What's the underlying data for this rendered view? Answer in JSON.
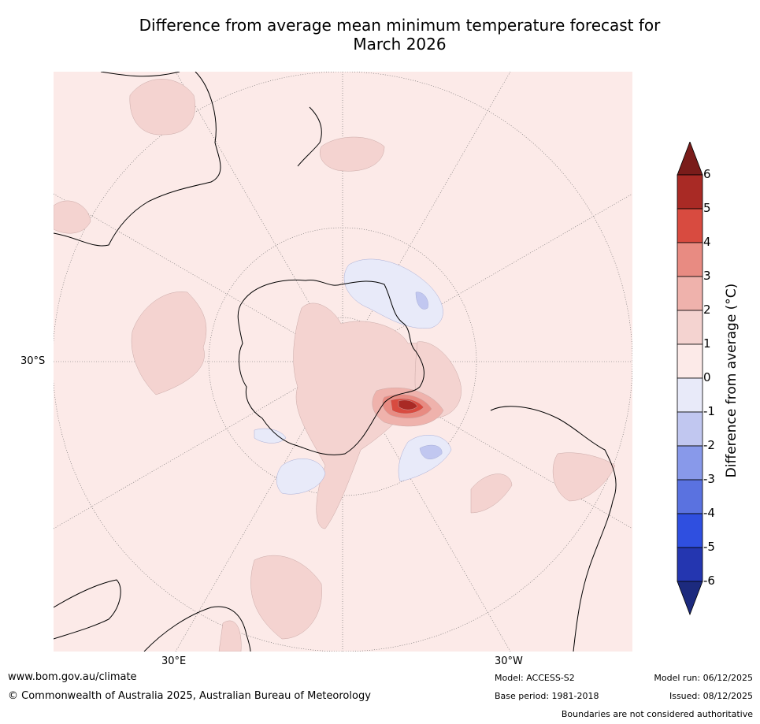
{
  "title": {
    "line1": "Difference from average mean minimum temperature forecast for",
    "line2": "March 2026"
  },
  "map": {
    "projection": "south polar stereographic",
    "lat_label": "30°S",
    "lon_labels": {
      "east": "30°E",
      "west": "30°W"
    },
    "background_color": "#fceae8"
  },
  "colorbar": {
    "title": "Difference from average (°C)",
    "ticks": [
      "6",
      "5",
      "4",
      "3",
      "2",
      "1",
      "0",
      "-1",
      "-2",
      "-3",
      "-4",
      "-5",
      "-6"
    ],
    "bins": [
      {
        "range": "above 6",
        "color": "#7a1c1a"
      },
      {
        "range": "5 to 6",
        "color": "#a92a25"
      },
      {
        "range": "4 to 5",
        "color": "#d84b40"
      },
      {
        "range": "3 to 4",
        "color": "#e88b82"
      },
      {
        "range": "2 to 3",
        "color": "#efb2ac"
      },
      {
        "range": "1 to 2",
        "color": "#f4d3d0"
      },
      {
        "range": "0 to 1",
        "color": "#fceae8"
      },
      {
        "range": "-1 to 0",
        "color": "#e8eaf9"
      },
      {
        "range": "-2 to -1",
        "color": "#c1c7f0"
      },
      {
        "range": "-3 to -2",
        "color": "#8899ea"
      },
      {
        "range": "-4 to -3",
        "color": "#5a72e0"
      },
      {
        "range": "-5 to -4",
        "color": "#2f4fe0"
      },
      {
        "range": "-6 to -5",
        "color": "#2436b0"
      },
      {
        "range": "below -6",
        "color": "#1c2a7e"
      }
    ]
  },
  "footer": {
    "url": "www.bom.gov.au/climate",
    "copyright": "© Commonwealth of Australia 2025, Australian Bureau of Meteorology",
    "model": "Model: ACCESS-S2",
    "base_period": "Base period: 1981-2018",
    "model_run": "Model run: 06/12/2025",
    "issued": "Issued: 08/12/2025",
    "disclaimer": "Boundaries are not considered authoritative"
  }
}
